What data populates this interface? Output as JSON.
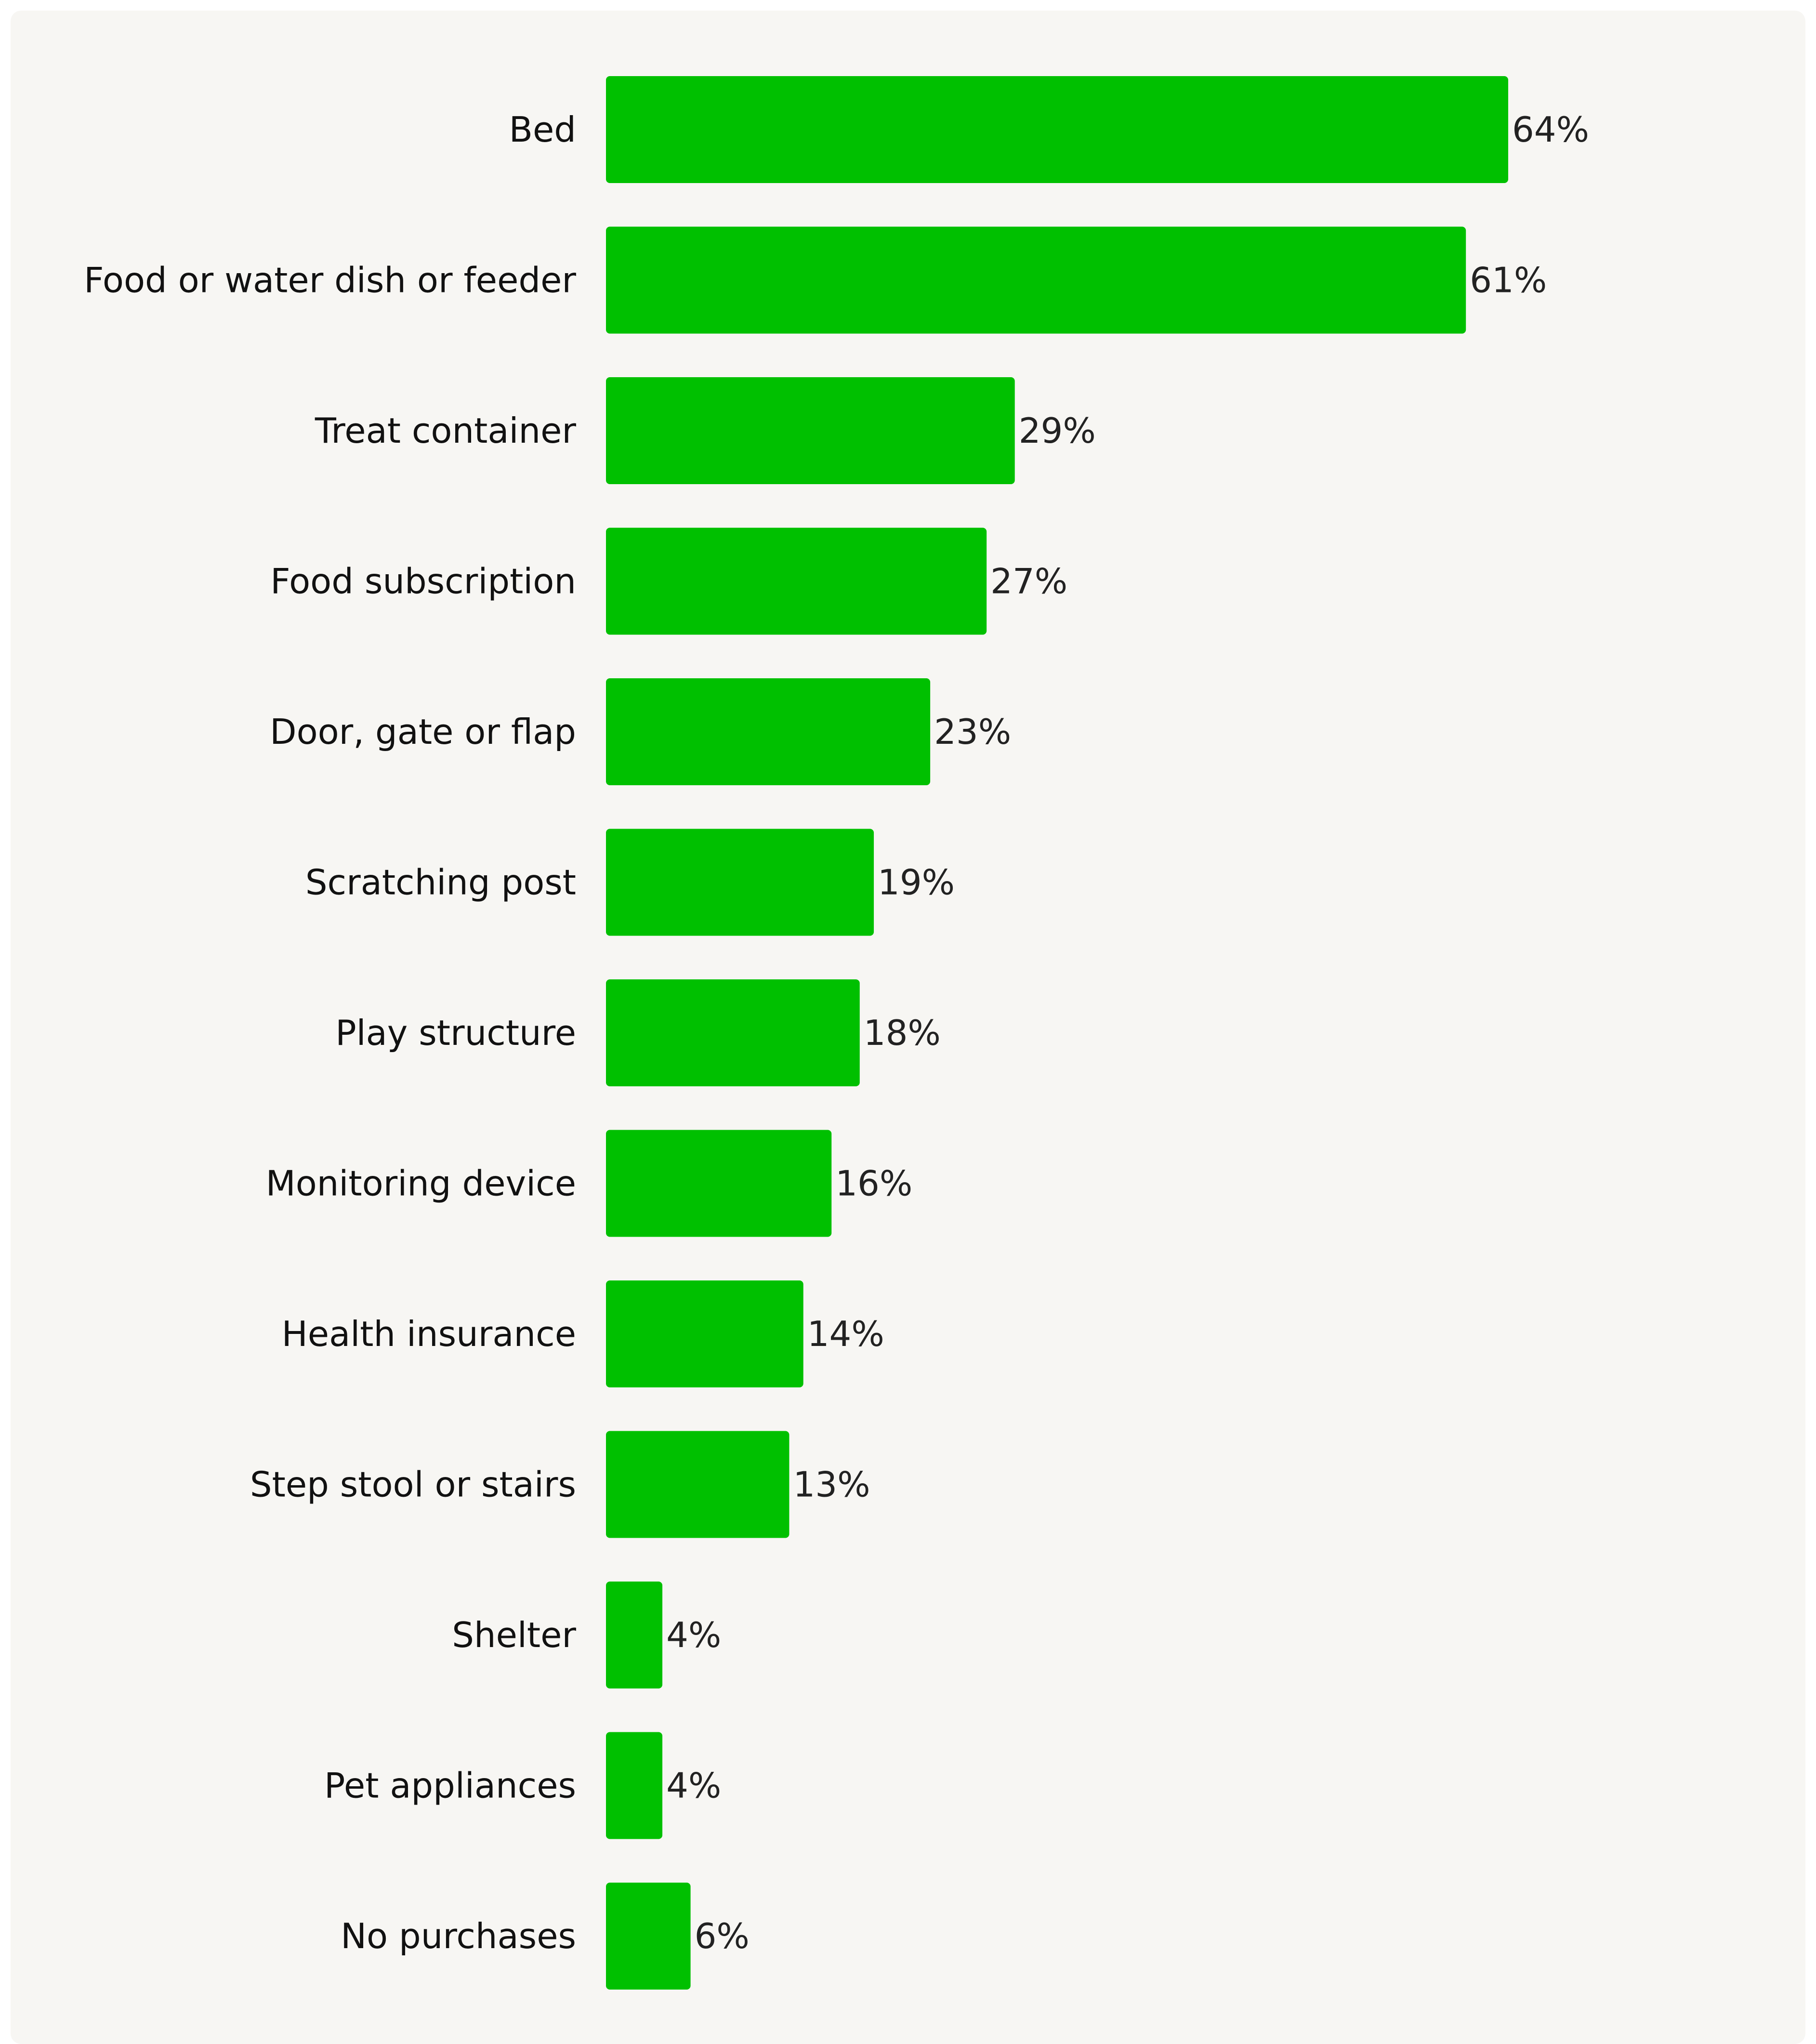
{
  "chart_data": {
    "type": "bar",
    "orientation": "horizontal",
    "categories": [
      "Bed",
      "Food or water dish or feeder",
      "Treat container",
      "Food subscription",
      "Door, gate or flap",
      "Scratching post",
      "Play structure",
      "Monitoring device",
      "Health insurance",
      "Step stool or stairs",
      "Shelter",
      "Pet appliances",
      "No purchases"
    ],
    "values": [
      64,
      61,
      29,
      27,
      23,
      19,
      18,
      16,
      14,
      13,
      4,
      4,
      6
    ],
    "value_labels": [
      "64%",
      "61%",
      "29%",
      "27%",
      "23%",
      "19%",
      "18%",
      "16%",
      "14%",
      "13%",
      "4%",
      "4%",
      "6%"
    ],
    "xlim": [
      0,
      100
    ],
    "grid": false,
    "legend": "none",
    "bar_color": "#00c000",
    "background_color": "#f7f6f3"
  }
}
